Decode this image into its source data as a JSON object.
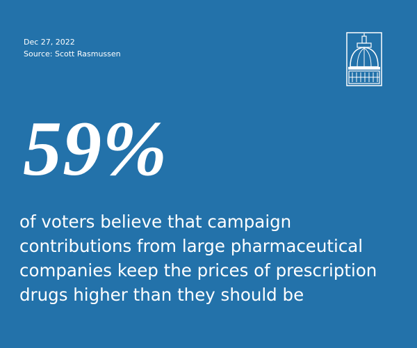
{
  "header": {
    "date": "Dec 27, 2022",
    "source": "Source: Scott Rasmussen"
  },
  "stat": "59%",
  "body": {
    "lines": [
      "of voters believe that campaign",
      "contributions from large pharmaceutical",
      "companies keep the prices of prescription",
      "drugs higher than they should be"
    ]
  }
}
